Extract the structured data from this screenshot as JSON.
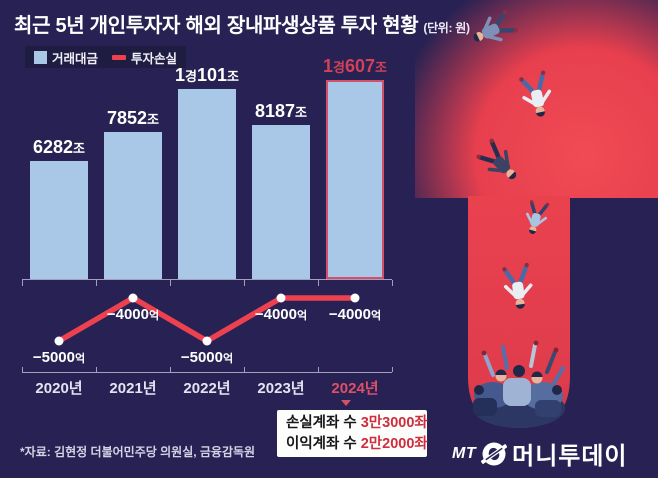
{
  "title": {
    "text": "최근 5년 개인투자자 해외 장내파생상품 투자 현황",
    "unit": "(단위: 원)"
  },
  "legend": {
    "items": [
      {
        "label": "거래대금",
        "swatch": "bar-swatch",
        "color": "#a9c7e6"
      },
      {
        "label": "투자손실",
        "swatch": "line-swatch",
        "color": "#ee4150"
      }
    ]
  },
  "chart_data": {
    "type": "bar",
    "combo": "bar+line",
    "categories": [
      "2020년",
      "2021년",
      "2022년",
      "2023년",
      "2024년"
    ],
    "series": [
      {
        "name": "거래대금",
        "type": "bar",
        "color": "#a9c7e6",
        "unit": "조 원",
        "values": [
          6282,
          7852,
          10101,
          8187,
          10607
        ],
        "labels": [
          "6282조",
          "7852조",
          "1경101조",
          "8187조",
          "1경607조"
        ]
      },
      {
        "name": "투자손실",
        "type": "line",
        "color": "#ee4150",
        "unit": "억 원",
        "values": [
          -5000,
          -4000,
          -5000,
          -4000,
          -4000
        ],
        "labels": [
          "−5000억",
          "−4000억",
          "−5000억",
          "−4000억",
          "−4000억"
        ]
      }
    ],
    "highlight_category": "2024년",
    "legend_position": "top-left",
    "grid": false,
    "value_axis_visible": false
  },
  "callout": {
    "rows": [
      {
        "label": "손실계좌 수",
        "value": "3만3000좌"
      },
      {
        "label": "이익계좌 수",
        "value": "2만2000좌"
      }
    ]
  },
  "source": "*자료: 김현정 더불어민주당 의원실, 금융감독원",
  "logo": {
    "mt": "MT",
    "name": "머니투데이"
  },
  "colors": {
    "background": "#272253",
    "bar_fill": "#a9c7e6",
    "loss_line": "#ee4150",
    "highlight_red": "#d4506a",
    "highlight_label_red": "#d14158",
    "callout_value_red": "#cf2e3e",
    "pit_red": "#e73f4e"
  },
  "icons": {
    "coin-icon": "MoneyToday coin logo",
    "callout-pointer-icon": "down triangle",
    "falling-people-illustration": "investors falling into a red pit"
  }
}
